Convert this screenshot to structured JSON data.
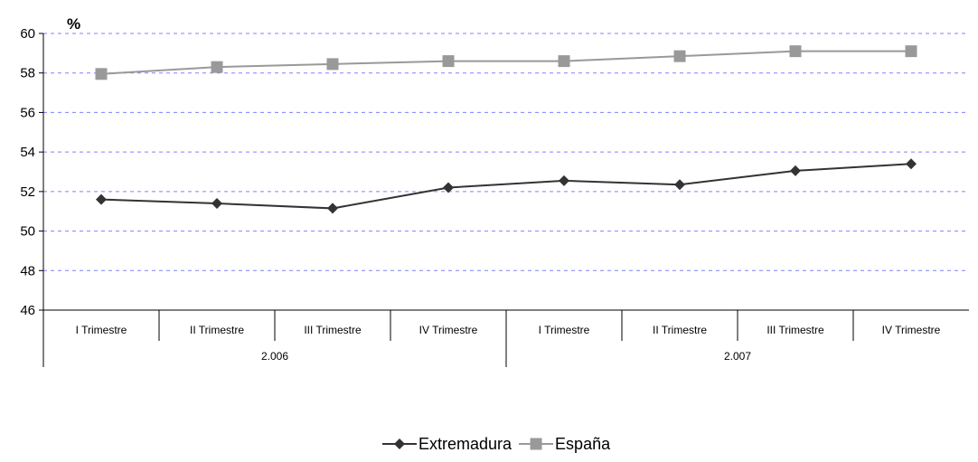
{
  "chart_data": {
    "type": "line",
    "unit_label": "%",
    "ylim": [
      46,
      60
    ],
    "yticks": [
      46,
      48,
      50,
      52,
      54,
      56,
      58,
      60
    ],
    "grid": true,
    "legend_position": "bottom",
    "categories": [
      "I Trimestre",
      "II Trimestre",
      "III Trimestre",
      "IV Trimestre",
      "I Trimestre",
      "II Trimestre",
      "III Trimestre",
      "IV Trimestre"
    ],
    "groups": [
      {
        "label": "2.006",
        "count": 4
      },
      {
        "label": "2.007",
        "count": 4
      }
    ],
    "series": [
      {
        "name": "Extremadura",
        "color": "#333333",
        "marker": "diamond",
        "values": [
          51.6,
          51.4,
          51.15,
          52.2,
          52.55,
          52.35,
          53.05,
          53.4
        ]
      },
      {
        "name": "España",
        "color": "#999999",
        "marker": "square",
        "values": [
          57.95,
          58.3,
          58.45,
          58.6,
          58.6,
          58.85,
          59.1,
          59.1
        ]
      }
    ]
  }
}
